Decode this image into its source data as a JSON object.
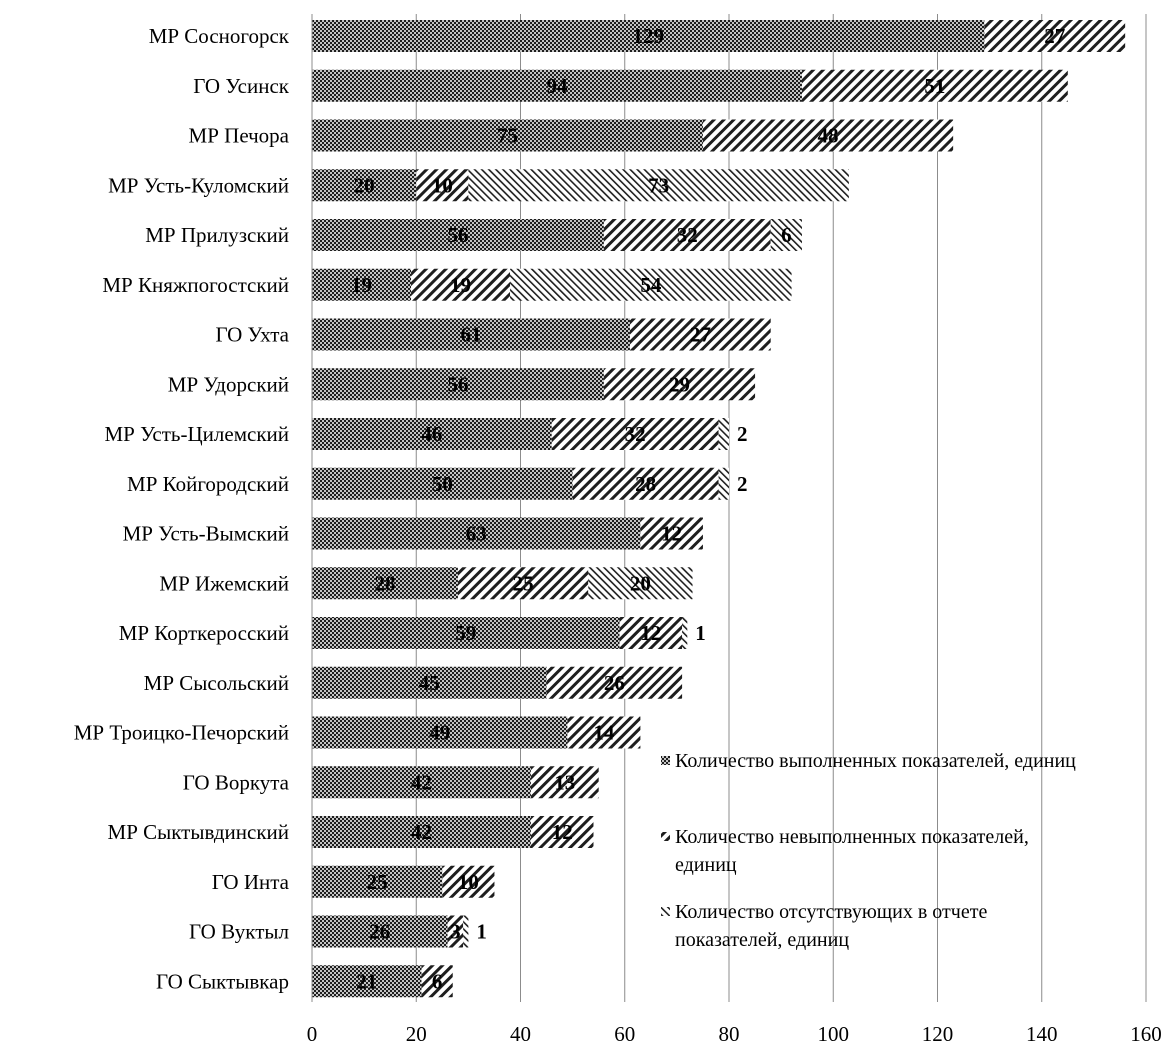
{
  "chart_data": {
    "type": "bar",
    "orientation": "horizontal",
    "stacked": true,
    "title": "",
    "xlabel": "",
    "ylabel": "",
    "xlim": [
      0,
      160
    ],
    "xticks": [
      0,
      20,
      40,
      60,
      80,
      100,
      120,
      140,
      160
    ],
    "grid": "vertical",
    "legend_position": "lower-right",
    "categories": [
      "МР Сосногорск",
      "ГО Усинск",
      "МР Печора",
      "МР Усть-Куломский",
      "МР Прилузский",
      "МР Княжпогостский",
      "ГО Ухта",
      "МР Удорский",
      "МР Усть-Цилемский",
      "МР Койгородский",
      "МР Усть-Вымский",
      "МР Ижемский",
      "МР Корткеросский",
      "МР Сысольский",
      "МР Троицко-Печорский",
      "ГО Воркута",
      "МР Сыктывдинский",
      "ГО Инта",
      "ГО Вуктыл",
      "ГО Сыктывкар"
    ],
    "series": [
      {
        "name": "Количество выполненных показателей, единиц",
        "legend_lines": [
          "Количество выполненных показателей, единиц"
        ],
        "pattern": "checker",
        "values": [
          129,
          94,
          75,
          20,
          56,
          19,
          61,
          56,
          46,
          50,
          63,
          28,
          59,
          45,
          49,
          42,
          42,
          25,
          26,
          21
        ]
      },
      {
        "name": "Количество невыполненных показателей, единиц",
        "legend_lines": [
          "Количество невыполненных показателей,",
          "единиц"
        ],
        "pattern": "diagonal-up",
        "values": [
          27,
          51,
          48,
          10,
          32,
          19,
          27,
          29,
          32,
          28,
          12,
          25,
          12,
          26,
          14,
          13,
          12,
          10,
          3,
          6
        ]
      },
      {
        "name": "Количество отсутствующих в отчете показателей, единиц",
        "legend_lines": [
          "Количество отсутствующих в отчете",
          "показателей, единиц"
        ],
        "pattern": "diagonal-down",
        "values": [
          null,
          null,
          null,
          73,
          6,
          54,
          null,
          null,
          2,
          2,
          null,
          20,
          1,
          null,
          null,
          null,
          null,
          null,
          1,
          null
        ]
      }
    ]
  }
}
